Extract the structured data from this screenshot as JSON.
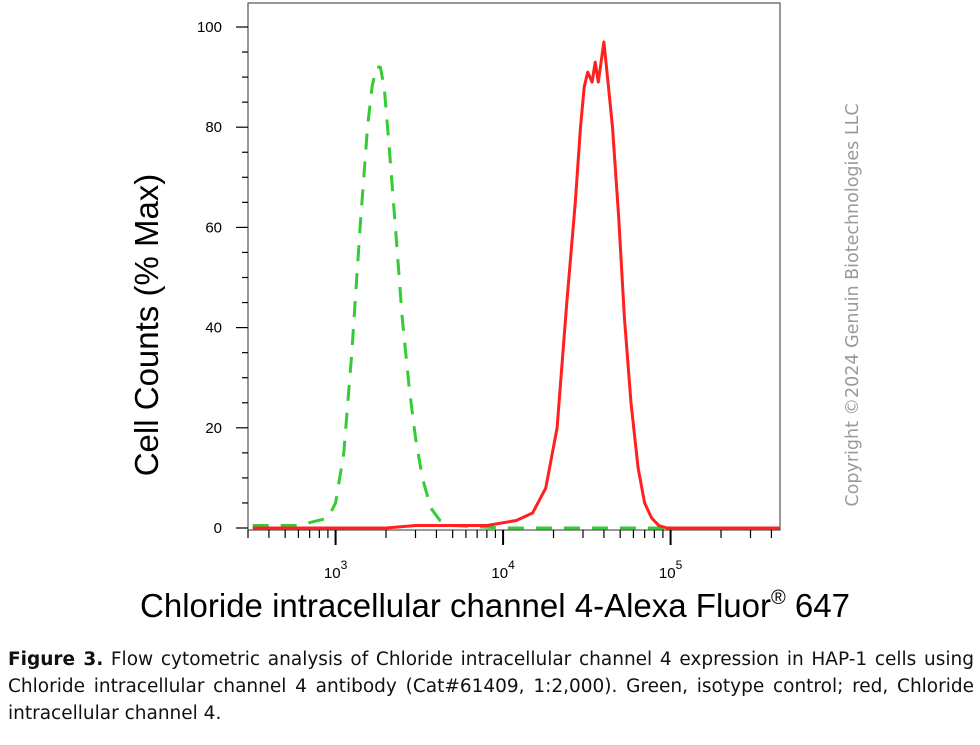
{
  "chart_data": {
    "type": "line",
    "title": "",
    "ylabel": "Cell Counts (% Max)",
    "xlabel": "Chloride intracellular channel 4-Alexa Fluor",
    "xlabel_sup": "®",
    "xlabel_suffix": " 647",
    "x_scale": "log",
    "xlim": [
      300,
      450000
    ],
    "ylim": [
      0,
      100
    ],
    "grid": false,
    "x_ticks": [
      {
        "value": 1000,
        "base": "10",
        "exp": "3"
      },
      {
        "value": 10000,
        "base": "10",
        "exp": "4"
      },
      {
        "value": 100000,
        "base": "10",
        "exp": "5"
      }
    ],
    "y_ticks": [
      "0",
      "20",
      "40",
      "60",
      "80",
      "100"
    ],
    "series": [
      {
        "color": "#33cc33",
        "dash": true,
        "points": [
          [
            320,
            0.5
          ],
          [
            600,
            0.5
          ],
          [
            900,
            2
          ],
          [
            1000,
            5
          ],
          [
            1120,
            15
          ],
          [
            1250,
            35
          ],
          [
            1400,
            60
          ],
          [
            1550,
            80
          ],
          [
            1650,
            88
          ],
          [
            1750,
            92
          ],
          [
            1850,
            92
          ],
          [
            1950,
            88
          ],
          [
            2100,
            75
          ],
          [
            2300,
            58
          ],
          [
            2500,
            42
          ],
          [
            2750,
            28
          ],
          [
            3000,
            18
          ],
          [
            3300,
            10
          ],
          [
            3700,
            4
          ],
          [
            4200,
            1.5
          ],
          [
            5000,
            0.5
          ],
          [
            10000,
            0
          ],
          [
            100000,
            0
          ],
          [
            450000,
            0
          ]
        ]
      },
      {
        "color": "#ff2020",
        "dash": false,
        "points": [
          [
            320,
            0
          ],
          [
            2000,
            0
          ],
          [
            3000,
            0.5
          ],
          [
            5000,
            0.5
          ],
          [
            8000,
            0.5
          ],
          [
            12000,
            1.5
          ],
          [
            15000,
            3
          ],
          [
            18000,
            8
          ],
          [
            21000,
            20
          ],
          [
            24000,
            45
          ],
          [
            27000,
            65
          ],
          [
            29000,
            80
          ],
          [
            30500,
            88
          ],
          [
            32000,
            91
          ],
          [
            34000,
            89
          ],
          [
            35500,
            93
          ],
          [
            37000,
            89
          ],
          [
            38500,
            93
          ],
          [
            40000,
            97
          ],
          [
            42000,
            90
          ],
          [
            45000,
            80
          ],
          [
            49000,
            62
          ],
          [
            53000,
            42
          ],
          [
            58000,
            25
          ],
          [
            64000,
            12
          ],
          [
            70000,
            5
          ],
          [
            77000,
            2
          ],
          [
            85000,
            0.5
          ],
          [
            95000,
            0
          ],
          [
            450000,
            0
          ]
        ]
      }
    ]
  },
  "watermark": "Copyright ©2024 Genuin Biotechnologies LLC",
  "caption": {
    "label": "Figure 3.",
    "text": " Flow cytometric analysis of Chloride intracellular channel 4 expression in HAP-1 cells using Chloride intracellular channel 4 antibody (Cat#61409, 1:2,000). Green, isotype control; red, Chloride intracellular channel 4."
  }
}
